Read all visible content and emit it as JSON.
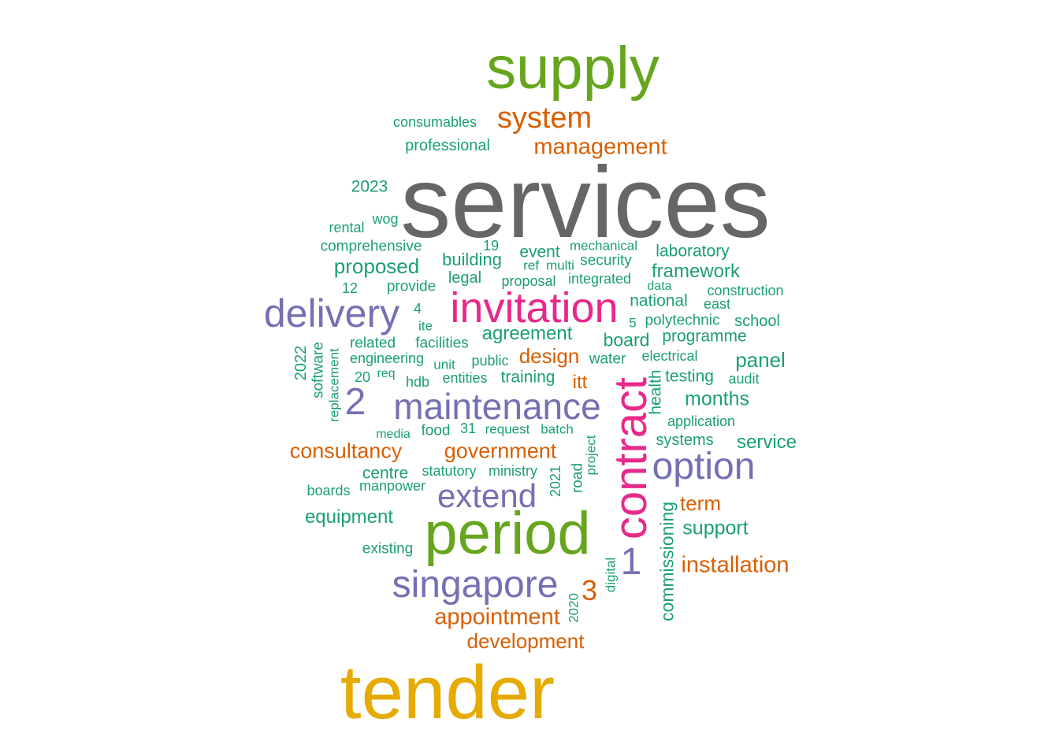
{
  "palette": {
    "teal": "#1b9e77",
    "orange": "#d95f02",
    "purple": "#7570b3",
    "pink": "#e7298a",
    "green": "#66a61e",
    "gold": "#e6ab02",
    "gray": "#666666"
  },
  "words": [
    {
      "text": "services",
      "color": "gray",
      "freq": 1.0
    },
    {
      "text": "tender",
      "color": "gold",
      "freq": 0.78
    },
    {
      "text": "supply",
      "color": "green",
      "freq": 0.62
    },
    {
      "text": "period",
      "color": "green",
      "freq": 0.62
    },
    {
      "text": "contract",
      "color": "pink",
      "freq": 0.5
    },
    {
      "text": "invitation",
      "color": "pink",
      "freq": 0.5
    },
    {
      "text": "delivery",
      "color": "purple",
      "freq": 0.42
    },
    {
      "text": "maintenance",
      "color": "purple",
      "freq": 0.42
    },
    {
      "text": "singapore",
      "color": "purple",
      "freq": 0.42
    },
    {
      "text": "option",
      "color": "purple",
      "freq": 0.42
    },
    {
      "text": "extend",
      "color": "purple",
      "freq": 0.38
    },
    {
      "text": "2",
      "color": "purple",
      "freq": 0.42
    },
    {
      "text": "1",
      "color": "purple",
      "freq": 0.42
    },
    {
      "text": "system",
      "color": "orange",
      "freq": 0.3
    },
    {
      "text": "management",
      "color": "orange",
      "freq": 0.24
    },
    {
      "text": "consultancy",
      "color": "orange",
      "freq": 0.24
    },
    {
      "text": "government",
      "color": "orange",
      "freq": 0.24
    },
    {
      "text": "appointment",
      "color": "orange",
      "freq": 0.24
    },
    {
      "text": "development",
      "color": "orange",
      "freq": 0.22
    },
    {
      "text": "installation",
      "color": "orange",
      "freq": 0.24
    },
    {
      "text": "design",
      "color": "orange",
      "freq": 0.22
    },
    {
      "text": "term",
      "color": "orange",
      "freq": 0.22
    },
    {
      "text": "itt",
      "color": "orange",
      "freq": 0.2
    },
    {
      "text": "3",
      "color": "orange",
      "freq": 0.28
    },
    {
      "text": "consumables",
      "color": "teal",
      "freq": 0.12
    },
    {
      "text": "professional",
      "color": "teal",
      "freq": 0.13
    },
    {
      "text": "2023",
      "color": "teal",
      "freq": 0.14
    },
    {
      "text": "wog",
      "color": "teal",
      "freq": 0.12
    },
    {
      "text": "rental",
      "color": "teal",
      "freq": 0.12
    },
    {
      "text": "comprehensive",
      "color": "teal",
      "freq": 0.13
    },
    {
      "text": "19",
      "color": "teal",
      "freq": 0.12
    },
    {
      "text": "mechanical",
      "color": "teal",
      "freq": 0.12
    },
    {
      "text": "laboratory",
      "color": "teal",
      "freq": 0.14
    },
    {
      "text": "event",
      "color": "teal",
      "freq": 0.14
    },
    {
      "text": "security",
      "color": "teal",
      "freq": 0.13
    },
    {
      "text": "building",
      "color": "teal",
      "freq": 0.15
    },
    {
      "text": "ref",
      "color": "teal",
      "freq": 0.12
    },
    {
      "text": "multi",
      "color": "teal",
      "freq": 0.12
    },
    {
      "text": "proposed",
      "color": "teal",
      "freq": 0.18
    },
    {
      "text": "framework",
      "color": "teal",
      "freq": 0.17
    },
    {
      "text": "legal",
      "color": "teal",
      "freq": 0.13
    },
    {
      "text": "proposal",
      "color": "teal",
      "freq": 0.12
    },
    {
      "text": "integrated",
      "color": "teal",
      "freq": 0.12
    },
    {
      "text": "data",
      "color": "teal",
      "freq": 0.11
    },
    {
      "text": "construction",
      "color": "teal",
      "freq": 0.12
    },
    {
      "text": "12",
      "color": "teal",
      "freq": 0.12
    },
    {
      "text": "provide",
      "color": "teal",
      "freq": 0.13
    },
    {
      "text": "national",
      "color": "teal",
      "freq": 0.14
    },
    {
      "text": "east",
      "color": "teal",
      "freq": 0.12
    },
    {
      "text": "4",
      "color": "teal",
      "freq": 0.12
    },
    {
      "text": "ite",
      "color": "teal",
      "freq": 0.12
    },
    {
      "text": "5",
      "color": "teal",
      "freq": 0.12
    },
    {
      "text": "polytechnic",
      "color": "teal",
      "freq": 0.13
    },
    {
      "text": "school",
      "color": "teal",
      "freq": 0.14
    },
    {
      "text": "agreement",
      "color": "teal",
      "freq": 0.17
    },
    {
      "text": "board",
      "color": "teal",
      "freq": 0.16
    },
    {
      "text": "programme",
      "color": "teal",
      "freq": 0.14
    },
    {
      "text": "2022",
      "color": "teal",
      "freq": 0.13
    },
    {
      "text": "software",
      "color": "teal",
      "freq": 0.13
    },
    {
      "text": "replacement",
      "color": "teal",
      "freq": 0.11
    },
    {
      "text": "related",
      "color": "teal",
      "freq": 0.13
    },
    {
      "text": "facilities",
      "color": "teal",
      "freq": 0.13
    },
    {
      "text": "engineering",
      "color": "teal",
      "freq": 0.13
    },
    {
      "text": "unit",
      "color": "teal",
      "freq": 0.12
    },
    {
      "text": "public",
      "color": "teal",
      "freq": 0.12
    },
    {
      "text": "water",
      "color": "teal",
      "freq": 0.13
    },
    {
      "text": "electrical",
      "color": "teal",
      "freq": 0.12
    },
    {
      "text": "panel",
      "color": "teal",
      "freq": 0.17
    },
    {
      "text": "20",
      "color": "teal",
      "freq": 0.12
    },
    {
      "text": "req",
      "color": "teal",
      "freq": 0.11
    },
    {
      "text": "hdb",
      "color": "teal",
      "freq": 0.12
    },
    {
      "text": "entities",
      "color": "teal",
      "freq": 0.12
    },
    {
      "text": "training",
      "color": "teal",
      "freq": 0.14
    },
    {
      "text": "health",
      "color": "teal",
      "freq": 0.14
    },
    {
      "text": "testing",
      "color": "teal",
      "freq": 0.14
    },
    {
      "text": "audit",
      "color": "teal",
      "freq": 0.12
    },
    {
      "text": "months",
      "color": "teal",
      "freq": 0.17
    },
    {
      "text": "application",
      "color": "teal",
      "freq": 0.12
    },
    {
      "text": "media",
      "color": "teal",
      "freq": 0.11
    },
    {
      "text": "food",
      "color": "teal",
      "freq": 0.13
    },
    {
      "text": "31",
      "color": "teal",
      "freq": 0.12
    },
    {
      "text": "request",
      "color": "teal",
      "freq": 0.12
    },
    {
      "text": "batch",
      "color": "teal",
      "freq": 0.12
    },
    {
      "text": "project",
      "color": "teal",
      "freq": 0.12
    },
    {
      "text": "systems",
      "color": "teal",
      "freq": 0.14
    },
    {
      "text": "service",
      "color": "teal",
      "freq": 0.17
    },
    {
      "text": "centre",
      "color": "teal",
      "freq": 0.15
    },
    {
      "text": "statutory",
      "color": "teal",
      "freq": 0.13
    },
    {
      "text": "ministry",
      "color": "teal",
      "freq": 0.12
    },
    {
      "text": "2021",
      "color": "teal",
      "freq": 0.12
    },
    {
      "text": "road",
      "color": "teal",
      "freq": 0.12
    },
    {
      "text": "boards",
      "color": "teal",
      "freq": 0.12
    },
    {
      "text": "manpower",
      "color": "teal",
      "freq": 0.12
    },
    {
      "text": "equipment",
      "color": "teal",
      "freq": 0.17
    },
    {
      "text": "commissioning",
      "color": "teal",
      "freq": 0.15
    },
    {
      "text": "support",
      "color": "teal",
      "freq": 0.17
    },
    {
      "text": "existing",
      "color": "teal",
      "freq": 0.12
    },
    {
      "text": "digital",
      "color": "teal",
      "freq": 0.11
    },
    {
      "text": "2020",
      "color": "teal",
      "freq": 0.11
    }
  ]
}
